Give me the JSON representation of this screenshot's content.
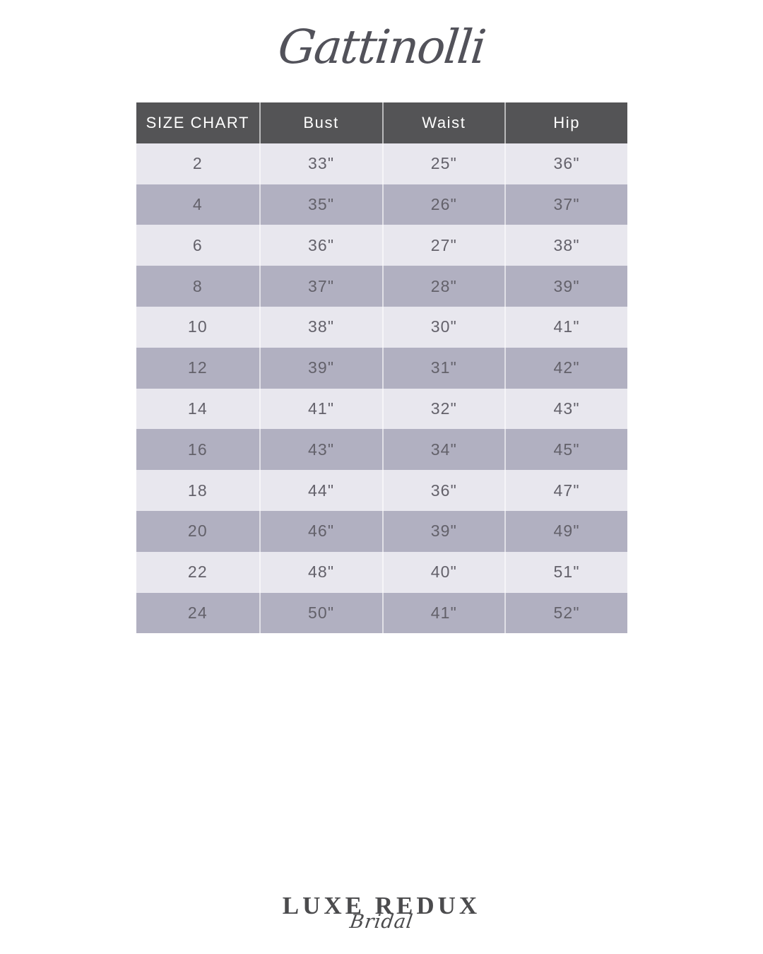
{
  "brand": {
    "name": "Gattinolli"
  },
  "chart_data": {
    "type": "table",
    "title": "SIZE CHART",
    "columns": [
      "SIZE CHART",
      "Bust",
      "Waist",
      "Hip"
    ],
    "rows": [
      [
        "2",
        "33\"",
        "25\"",
        "36\""
      ],
      [
        "4",
        "35\"",
        "26\"",
        "37\""
      ],
      [
        "6",
        "36\"",
        "27\"",
        "38\""
      ],
      [
        "8",
        "37\"",
        "28\"",
        "39\""
      ],
      [
        "10",
        "38\"",
        "30\"",
        "41\""
      ],
      [
        "12",
        "39\"",
        "31\"",
        "42\""
      ],
      [
        "14",
        "41\"",
        "32\"",
        "43\""
      ],
      [
        "16",
        "43\"",
        "34\"",
        "45\""
      ],
      [
        "18",
        "44\"",
        "36\"",
        "47\""
      ],
      [
        "20",
        "46\"",
        "39\"",
        "49\""
      ],
      [
        "22",
        "48\"",
        "40\"",
        "51\""
      ],
      [
        "24",
        "50\"",
        "41\"",
        "52\""
      ]
    ],
    "layout": {
      "row_alternation_start": "light",
      "header_position": "top",
      "grid": "white column separators, no outer border"
    }
  },
  "footer": {
    "logo_line1": "LUXE REDUX",
    "logo_line2": "Bridal"
  },
  "colors": {
    "brand_text": "#52525a",
    "header_bg": "#545456",
    "header_text": "#ffffff",
    "row_light": "#e8e7ee",
    "row_dark": "#b1b0c1",
    "cell_text": "#63616a",
    "logo_text": "#4b4b4d"
  }
}
